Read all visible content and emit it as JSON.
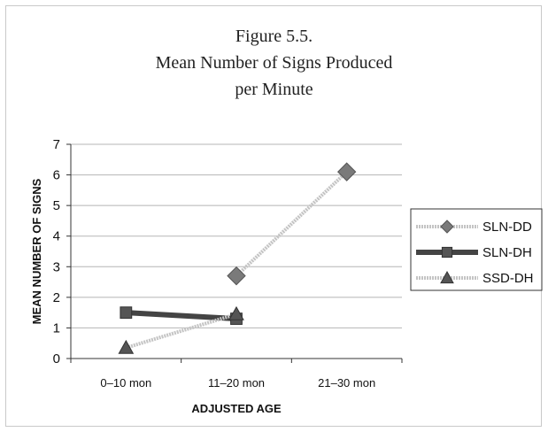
{
  "chart_data": {
    "type": "line",
    "title_lines": [
      "Figure 5.5.",
      "Mean Number of Signs Produced",
      "per Minute"
    ],
    "xlabel": "ADJUSTED AGE",
    "ylabel": "MEAN NUMBER OF SIGNS",
    "categories": [
      "0–10 mon",
      "11–20 mon",
      "21–30 mon"
    ],
    "ylim": [
      0,
      7
    ],
    "yticks": [
      "0",
      "1",
      "2",
      "3",
      "4",
      "5",
      "6",
      "7"
    ],
    "grid": true,
    "legend_position": "right",
    "series": [
      {
        "name": "SLN-DD",
        "marker": "diamond",
        "line_color": "#c4c4c4",
        "marker_color": "#7a7a7a",
        "values": [
          null,
          2.7,
          6.1
        ]
      },
      {
        "name": "SLN-DH",
        "marker": "square",
        "line_color": "#444444",
        "marker_color": "#555555",
        "values": [
          1.5,
          1.3,
          null
        ]
      },
      {
        "name": "SSD-DH",
        "marker": "triangle",
        "line_color": "#c4c4c4",
        "marker_color": "#555555",
        "values": [
          0.35,
          1.45,
          null
        ]
      }
    ]
  }
}
